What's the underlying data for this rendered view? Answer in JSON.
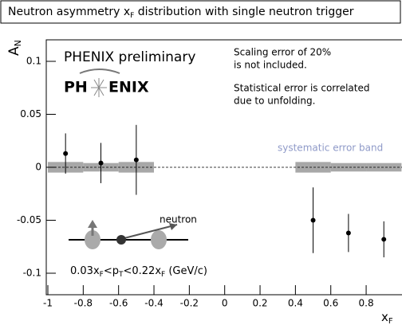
{
  "chart_data": {
    "type": "errorbar",
    "title_parts": [
      "Neutron asymmetry x",
      "F",
      " distribution with single neutron trigger"
    ],
    "ylabel_parts": [
      "A",
      "N"
    ],
    "xlabel_parts": [
      "x",
      "F"
    ],
    "annotations": {
      "preliminary": "PHENIX preliminary",
      "logo_parts": [
        "PH",
        "ENIX"
      ],
      "notes": [
        "Scaling error of 20%",
        "is not included.",
        "Statistical error is correlated",
        "due to unfolding."
      ],
      "band_label": "systematic error band",
      "particle": "neutron",
      "cut_parts": [
        "0.03x",
        "F",
        "<p",
        "T",
        "<0.22x",
        "F",
        " (GeV/c)"
      ]
    },
    "x": [
      -0.9,
      -0.7,
      -0.5,
      0.5,
      0.7,
      0.9
    ],
    "values": [
      0.013,
      0.004,
      0.007,
      -0.05,
      -0.062,
      -0.068
    ],
    "errors": [
      0.019,
      0.019,
      0.033,
      0.031,
      0.018,
      0.017
    ],
    "systematic": [
      0.005,
      0.004,
      0.005,
      0.005,
      0.004,
      0.004
    ],
    "color": "#000000",
    "band_color": "#a8a8a8",
    "xlim": [
      -1,
      1
    ],
    "ylim": [
      -0.12,
      0.12
    ],
    "xticks": [
      -1,
      -0.8,
      -0.6,
      -0.4,
      -0.2,
      0,
      0.2,
      0.4,
      0.6,
      0.8
    ],
    "yticks": [
      -0.1,
      -0.05,
      0,
      0.05,
      0.1
    ]
  }
}
